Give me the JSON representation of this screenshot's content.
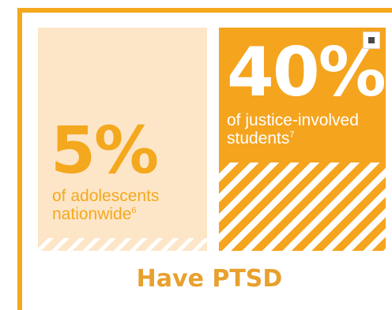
{
  "panels": {
    "left": {
      "percent": "5%",
      "line1": "of adolescents",
      "line2": "nationwide",
      "note": "6"
    },
    "right": {
      "percent": "40%",
      "line1": "of justice-involved",
      "line2": "students",
      "note": "7"
    }
  },
  "caption": "Have PTSD",
  "icons": {
    "corner": "stop-icon"
  },
  "colors": {
    "accent": "#f4a81e",
    "light_panel": "#fde6c8",
    "dark_panel": "#f5a41e",
    "caption": "#e8a02e"
  }
}
